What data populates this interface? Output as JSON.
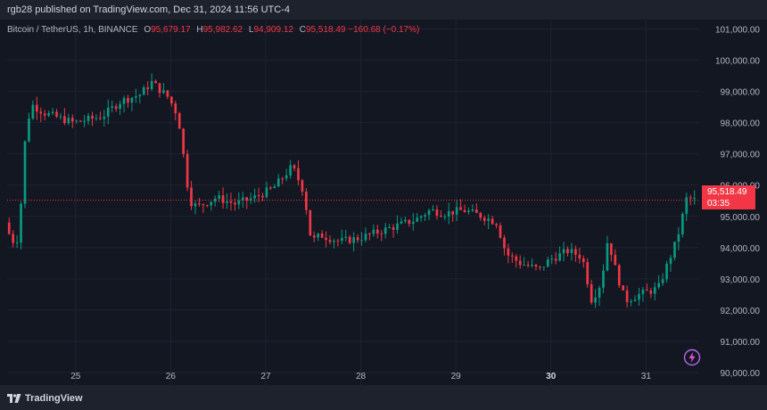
{
  "header": {
    "publisher_text": "rgb28 published on TradingView.com, Dec 31, 2024 11:56 UTC-4"
  },
  "legend": {
    "symbol": "Bitcoin / TetherUS, 1h, BINANCE",
    "open_label": "O",
    "open": "95,679.17",
    "high_label": "H",
    "high": "95,982.62",
    "low_label": "L",
    "low": "94,909.12",
    "close_label": "C",
    "close": "95,518.49",
    "change": "−160.68 (−0.17%)"
  },
  "price_badge": {
    "price": "95,518.49",
    "countdown": "03:35"
  },
  "footer": {
    "brand": "TradingView"
  },
  "colors": {
    "up": "#089981",
    "down": "#f23645",
    "background": "#131722",
    "grid": "#1f2330",
    "axis_text": "#b2b5be"
  },
  "icons": [
    "tradingview-logo-icon",
    "lightning-icon"
  ],
  "chart_data": {
    "type": "candlestick",
    "title": "Bitcoin / TetherUS, 1h, BINANCE",
    "x_ticks": [
      "25",
      "26",
      "27",
      "28",
      "29",
      "30",
      "31"
    ],
    "x_tick_bold": "30",
    "y_ticks": [
      "101,000.00",
      "100,000.00",
      "99,000.00",
      "98,000.00",
      "97,000.00",
      "96,000.00",
      "95,000.00",
      "94,000.00",
      "93,000.00",
      "92,000.00",
      "91,000.00",
      "90,000.00"
    ],
    "ylim": [
      89600,
      101300
    ],
    "xlim": [
      24.28,
      31.55
    ],
    "grid": true,
    "last_price": 95518.49,
    "key_points": [
      [
        24.28,
        94800
      ],
      [
        24.35,
        94200
      ],
      [
        24.43,
        94300
      ],
      [
        24.47,
        97000
      ],
      [
        24.55,
        98600
      ],
      [
        24.7,
        98300
      ],
      [
        25.0,
        98000
      ],
      [
        25.3,
        98200
      ],
      [
        25.5,
        98700
      ],
      [
        25.7,
        98900
      ],
      [
        25.82,
        99300
      ],
      [
        26.0,
        98800
      ],
      [
        26.1,
        98200
      ],
      [
        26.22,
        95500
      ],
      [
        26.3,
        95300
      ],
      [
        26.5,
        95600
      ],
      [
        26.7,
        95400
      ],
      [
        26.9,
        95600
      ],
      [
        27.1,
        95900
      ],
      [
        27.3,
        96600
      ],
      [
        27.42,
        95800
      ],
      [
        27.5,
        94200
      ],
      [
        27.6,
        94400
      ],
      [
        27.8,
        94200
      ],
      [
        28.0,
        94300
      ],
      [
        28.2,
        94500
      ],
      [
        28.4,
        94700
      ],
      [
        28.6,
        94900
      ],
      [
        28.75,
        95200
      ],
      [
        28.9,
        95100
      ],
      [
        29.1,
        95200
      ],
      [
        29.3,
        95000
      ],
      [
        29.45,
        94800
      ],
      [
        29.55,
        93800
      ],
      [
        29.7,
        93500
      ],
      [
        29.9,
        93300
      ],
      [
        30.0,
        93600
      ],
      [
        30.2,
        93900
      ],
      [
        30.35,
        93700
      ],
      [
        30.45,
        92300
      ],
      [
        30.55,
        92900
      ],
      [
        30.62,
        94300
      ],
      [
        30.7,
        93300
      ],
      [
        30.8,
        92300
      ],
      [
        30.95,
        92500
      ],
      [
        31.15,
        92700
      ],
      [
        31.25,
        93500
      ],
      [
        31.35,
        94300
      ],
      [
        31.45,
        95600
      ],
      [
        31.55,
        95518
      ]
    ]
  }
}
